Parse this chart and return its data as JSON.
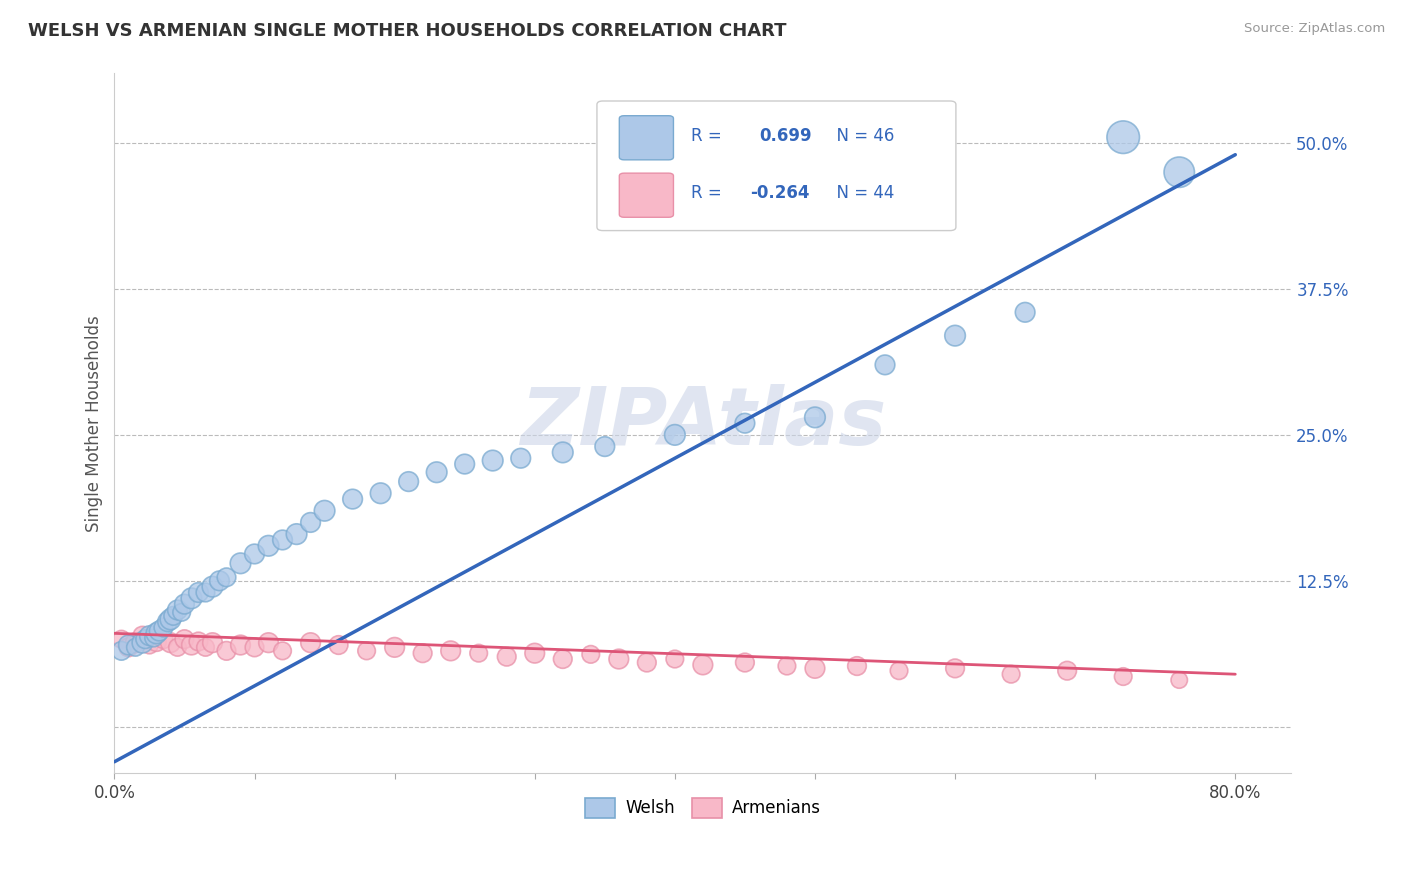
{
  "title": "WELSH VS ARMENIAN SINGLE MOTHER HOUSEHOLDS CORRELATION CHART",
  "source": "Source: ZipAtlas.com",
  "ylabel": "Single Mother Households",
  "xlim": [
    0.0,
    0.84
  ],
  "ylim": [
    -0.04,
    0.56
  ],
  "yticks": [
    0.0,
    0.125,
    0.25,
    0.375,
    0.5
  ],
  "ytick_labels": [
    "",
    "12.5%",
    "25.0%",
    "37.5%",
    "50.0%"
  ],
  "xticks": [
    0.0,
    0.1,
    0.2,
    0.3,
    0.4,
    0.5,
    0.6,
    0.7,
    0.8
  ],
  "xtick_labels": [
    "0.0%",
    "",
    "",
    "",
    "",
    "",
    "",
    "",
    "80.0%"
  ],
  "welsh_R": 0.699,
  "welsh_N": 46,
  "armenian_R": -0.264,
  "armenian_N": 44,
  "welsh_face_color": "#adc8e8",
  "welsh_edge_color": "#7aaad0",
  "armenian_face_color": "#f8b8c8",
  "armenian_edge_color": "#e890a8",
  "welsh_line_color": "#3366bb",
  "armenian_line_color": "#dd5577",
  "background_color": "#ffffff",
  "grid_color": "#bbbbbb",
  "watermark": "ZIPAtlas",
  "watermark_color": "#ccd5e8",
  "legend_text_color": "#3366bb",
  "welsh_x": [
    0.005,
    0.01,
    0.015,
    0.02,
    0.022,
    0.025,
    0.028,
    0.03,
    0.032,
    0.035,
    0.038,
    0.04,
    0.042,
    0.045,
    0.048,
    0.05,
    0.055,
    0.06,
    0.065,
    0.07,
    0.075,
    0.08,
    0.09,
    0.1,
    0.11,
    0.12,
    0.13,
    0.14,
    0.15,
    0.17,
    0.19,
    0.21,
    0.23,
    0.25,
    0.27,
    0.29,
    0.32,
    0.35,
    0.4,
    0.45,
    0.5,
    0.55,
    0.6,
    0.65,
    0.72,
    0.76
  ],
  "welsh_y": [
    0.065,
    0.07,
    0.068,
    0.072,
    0.075,
    0.078,
    0.076,
    0.08,
    0.082,
    0.085,
    0.09,
    0.092,
    0.095,
    0.1,
    0.098,
    0.105,
    0.11,
    0.115,
    0.115,
    0.12,
    0.125,
    0.128,
    0.14,
    0.148,
    0.155,
    0.16,
    0.165,
    0.175,
    0.185,
    0.195,
    0.2,
    0.21,
    0.218,
    0.225,
    0.228,
    0.23,
    0.235,
    0.24,
    0.25,
    0.26,
    0.265,
    0.31,
    0.335,
    0.355,
    0.505,
    0.475
  ],
  "armenian_x": [
    0.005,
    0.01,
    0.015,
    0.02,
    0.025,
    0.03,
    0.035,
    0.04,
    0.045,
    0.05,
    0.055,
    0.06,
    0.065,
    0.07,
    0.08,
    0.09,
    0.1,
    0.11,
    0.12,
    0.14,
    0.16,
    0.18,
    0.2,
    0.22,
    0.24,
    0.26,
    0.28,
    0.3,
    0.32,
    0.34,
    0.36,
    0.38,
    0.4,
    0.42,
    0.45,
    0.48,
    0.5,
    0.53,
    0.56,
    0.6,
    0.64,
    0.68,
    0.72,
    0.76
  ],
  "armenian_y": [
    0.075,
    0.068,
    0.072,
    0.078,
    0.07,
    0.073,
    0.075,
    0.072,
    0.068,
    0.075,
    0.07,
    0.073,
    0.068,
    0.072,
    0.065,
    0.07,
    0.068,
    0.072,
    0.065,
    0.072,
    0.07,
    0.065,
    0.068,
    0.063,
    0.065,
    0.063,
    0.06,
    0.063,
    0.058,
    0.062,
    0.058,
    0.055,
    0.058,
    0.053,
    0.055,
    0.052,
    0.05,
    0.052,
    0.048,
    0.05,
    0.045,
    0.048,
    0.043,
    0.04
  ],
  "welsh_sizes": [
    180,
    200,
    160,
    220,
    180,
    200,
    160,
    220,
    200,
    180,
    200,
    220,
    180,
    200,
    160,
    200,
    220,
    200,
    180,
    220,
    200,
    180,
    220,
    200,
    220,
    200,
    220,
    200,
    220,
    200,
    220,
    200,
    220,
    200,
    220,
    200,
    220,
    200,
    220,
    200,
    220,
    200,
    220,
    200,
    550,
    480
  ],
  "armenian_sizes": [
    160,
    180,
    200,
    180,
    160,
    200,
    180,
    200,
    160,
    180,
    200,
    180,
    160,
    200,
    180,
    200,
    180,
    200,
    160,
    200,
    180,
    160,
    200,
    180,
    200,
    160,
    180,
    200,
    180,
    160,
    200,
    180,
    160,
    200,
    180,
    160,
    200,
    180,
    160,
    180,
    160,
    180,
    160,
    140
  ],
  "welsh_line_x": [
    0.0,
    0.8
  ],
  "welsh_line_y": [
    -0.03,
    0.49
  ],
  "armenian_line_x": [
    0.0,
    0.8
  ],
  "armenian_line_y": [
    0.08,
    0.045
  ]
}
